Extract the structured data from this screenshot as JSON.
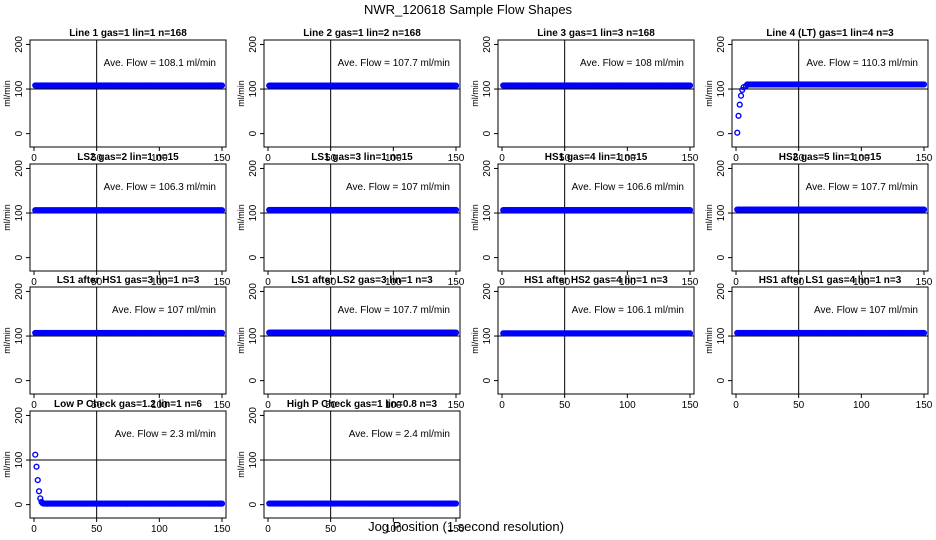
{
  "figure": {
    "title": "NWR_120618  Sample Flow Shapes",
    "xlabel": "Jog Position (1 second resolution)",
    "ylabel": "ml/min",
    "flow_label_prefix": "Ave. Flow = ",
    "flow_label_unit": "  ml/min",
    "colors": {
      "points": "#0000ff",
      "axes": "#000000",
      "background": "#ffffff"
    },
    "xlim": [
      0,
      150
    ],
    "ylim": [
      -30,
      210
    ],
    "xticks": [
      0,
      50,
      100,
      150
    ],
    "yticks": [
      0,
      100,
      200
    ],
    "vline_x": 50,
    "hline_y": 100
  },
  "chart_data": [
    {
      "type": "scatter",
      "title": "Line 1 gas=1 lin=1 n=168",
      "ave_flow": "108.1",
      "shape": "flat",
      "level": 108.1
    },
    {
      "type": "scatter",
      "title": "Line 2 gas=1 lin=2 n=168",
      "ave_flow": "107.7",
      "shape": "flat",
      "level": 107.7
    },
    {
      "type": "scatter",
      "title": "Line 3 gas=1 lin=3 n=168",
      "ave_flow": "108",
      "shape": "flat",
      "level": 108
    },
    {
      "type": "scatter",
      "title": "Line 4 (LT) gas=1 lin=4 n=3",
      "ave_flow": "110.3",
      "shape": "rise",
      "level": 110.3,
      "initial_points": [
        [
          1,
          2
        ],
        [
          2,
          40
        ],
        [
          3,
          65
        ],
        [
          4,
          85
        ],
        [
          5,
          98
        ],
        [
          6,
          104
        ],
        [
          8,
          107
        ]
      ]
    },
    {
      "type": "scatter",
      "title": "LS2 gas=2 lin=1 n=15",
      "ave_flow": "106.3",
      "shape": "flat",
      "level": 106.3
    },
    {
      "type": "scatter",
      "title": "LS1 gas=3 lin=1 n=15",
      "ave_flow": "107",
      "shape": "flat",
      "level": 107
    },
    {
      "type": "scatter",
      "title": "HS1 gas=4 lin=1 n=15",
      "ave_flow": "106.6",
      "shape": "flat",
      "level": 106.6
    },
    {
      "type": "scatter",
      "title": "HS2 gas=5 lin=1 n=15",
      "ave_flow": "107.7",
      "shape": "flat",
      "level": 107.7
    },
    {
      "type": "scatter",
      "title": "LS1 after HS1 gas=3 lin=1 n=3",
      "ave_flow": "107",
      "shape": "flat",
      "level": 107
    },
    {
      "type": "scatter",
      "title": "LS1 after LS2 gas=3 lin=1 n=3",
      "ave_flow": "107.7",
      "shape": "flat",
      "level": 107.7
    },
    {
      "type": "scatter",
      "title": "HS1 after HS2 gas=4 lin=1 n=3",
      "ave_flow": "106.1",
      "shape": "flat",
      "level": 106.1
    },
    {
      "type": "scatter",
      "title": "HS1 after LS1 gas=4 lin=1 n=3",
      "ave_flow": "107",
      "shape": "flat",
      "level": 107
    },
    {
      "type": "scatter",
      "title": "Low P Check gas=1.2 lin=1 n=6",
      "ave_flow": "2.3",
      "shape": "decay",
      "level": 2.3,
      "initial_points": [
        [
          1,
          112
        ],
        [
          2,
          85
        ],
        [
          3,
          55
        ],
        [
          4,
          30
        ],
        [
          5,
          14
        ],
        [
          6,
          6
        ],
        [
          7,
          3
        ]
      ]
    },
    {
      "type": "scatter",
      "title": "High P Check gas=1 lin=0.8 n=3",
      "ave_flow": "2.4",
      "shape": "flat",
      "level": 2.4
    }
  ]
}
